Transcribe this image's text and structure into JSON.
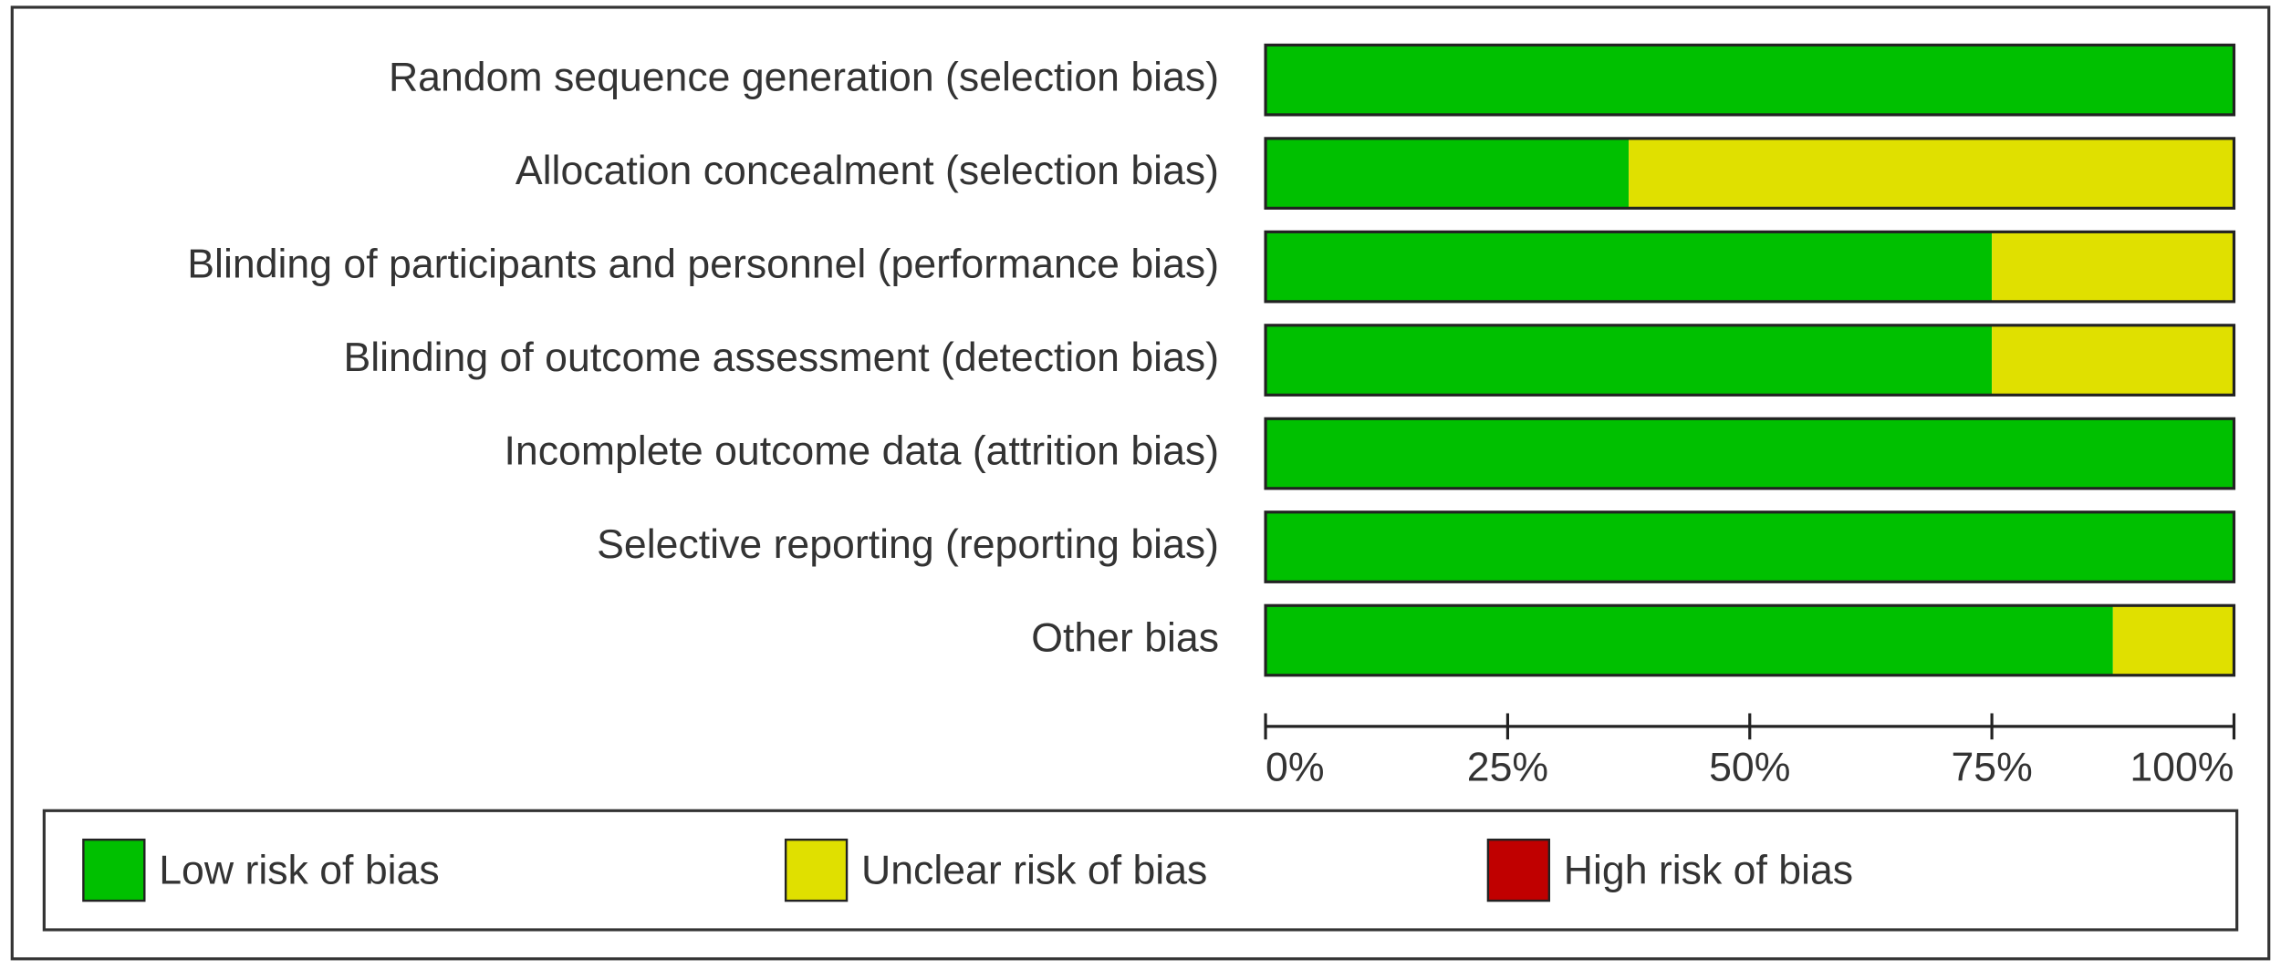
{
  "chart_data": {
    "type": "stacked-bar-horizontal",
    "categories": [
      "Random sequence generation (selection bias)",
      "Allocation concealment (selection bias)",
      "Blinding of participants and personnel (performance bias)",
      "Blinding of outcome assessment (detection bias)",
      "Incomplete outcome data (attrition bias)",
      "Selective reporting (reporting bias)",
      "Other bias"
    ],
    "series": [
      {
        "name": "Low risk of bias",
        "color": "#00c000",
        "values": [
          100,
          37.5,
          75,
          75,
          100,
          100,
          87.5
        ]
      },
      {
        "name": "Unclear risk of bias",
        "color": "#e0e000",
        "values": [
          0,
          62.5,
          25,
          25,
          0,
          0,
          12.5
        ]
      },
      {
        "name": "High risk of bias",
        "color": "#c00000",
        "values": [
          0,
          0,
          0,
          0,
          0,
          0,
          0
        ]
      }
    ],
    "xlim": [
      0,
      100
    ],
    "xticks": [
      {
        "value": 0,
        "label": "0%"
      },
      {
        "value": 25,
        "label": "25%"
      },
      {
        "value": 50,
        "label": "50%"
      },
      {
        "value": 75,
        "label": "75%"
      },
      {
        "value": 100,
        "label": "100%"
      }
    ]
  }
}
